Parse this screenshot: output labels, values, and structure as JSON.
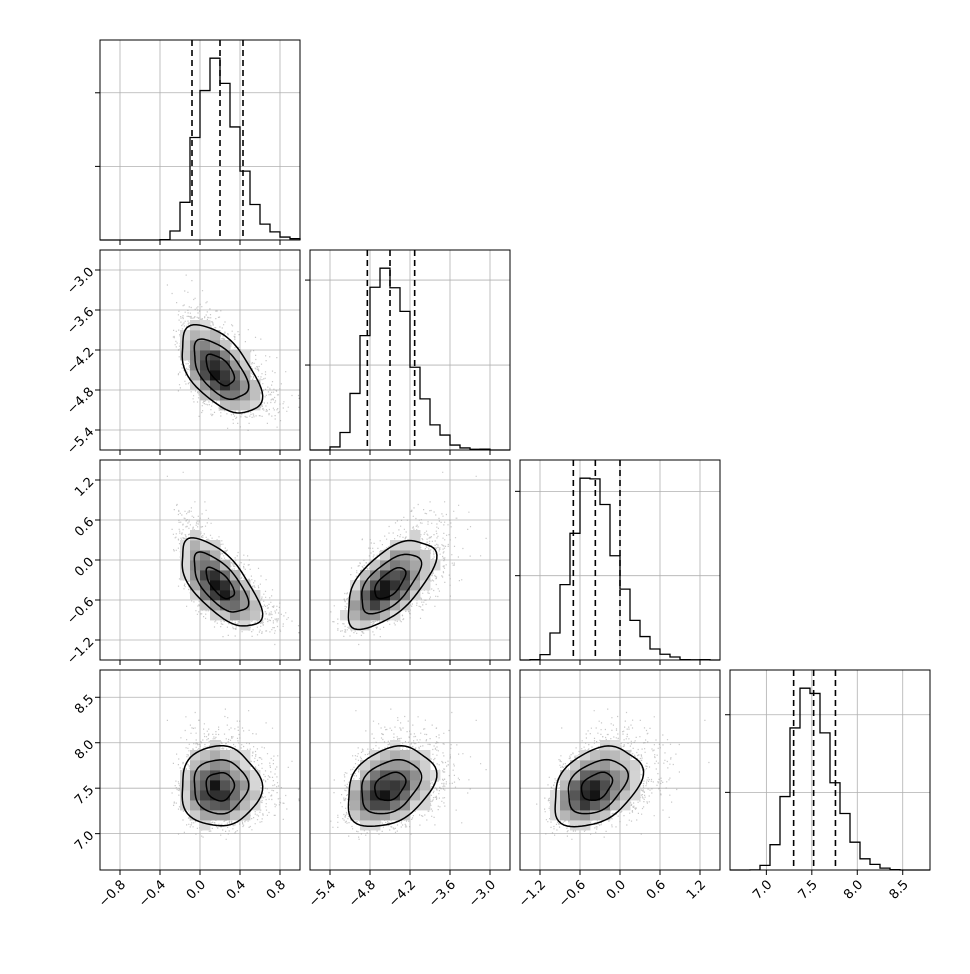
{
  "chart_data": {
    "type": "corner",
    "grid": true,
    "parameters": [
      {
        "range": [
          -1.0,
          1.0
        ],
        "ticks": [
          -0.8,
          -0.4,
          0.0,
          0.4,
          0.8
        ],
        "tick_labels": [
          "−0.8",
          "−0.4",
          "0.0",
          "0.4",
          "0.8"
        ],
        "mean": 0.2,
        "sd": 0.2,
        "quantiles": [
          -0.08,
          0.2,
          0.43
        ]
      },
      {
        "range": [
          -5.7,
          -2.7
        ],
        "ticks": [
          -5.4,
          -4.8,
          -4.2,
          -3.6,
          -3.0
        ],
        "tick_labels": [
          "−5.4",
          "−4.8",
          "−4.2",
          "−3.6",
          "−3.0"
        ],
        "mean": -4.5,
        "sd": 0.33,
        "quantiles": [
          -4.84,
          -4.5,
          -4.13
        ]
      },
      {
        "range": [
          -1.5,
          1.5
        ],
        "ticks": [
          -1.2,
          -0.6,
          0.0,
          0.6,
          1.2
        ],
        "tick_labels": [
          "−1.2",
          "−0.6",
          "0.0",
          "0.6",
          "1.2"
        ],
        "mean": -0.35,
        "sd": 0.33,
        "quantiles": [
          -0.7,
          -0.37,
          0.0
        ]
      },
      {
        "range": [
          6.6,
          8.8
        ],
        "ticks": [
          7.0,
          7.5,
          8.0,
          8.5
        ],
        "tick_labels": [
          "7.0",
          "7.5",
          "8.0",
          "8.5"
        ],
        "mean": 7.52,
        "sd": 0.22,
        "quantiles": [
          7.3,
          7.52,
          7.76
        ]
      }
    ],
    "correlations": [
      [
        1.0,
        -0.55,
        -0.65,
        0.0
      ],
      [
        -0.55,
        1.0,
        0.6,
        0.3
      ],
      [
        -0.65,
        0.6,
        1.0,
        0.35
      ],
      [
        0.0,
        0.3,
        0.35,
        1.0
      ]
    ]
  }
}
